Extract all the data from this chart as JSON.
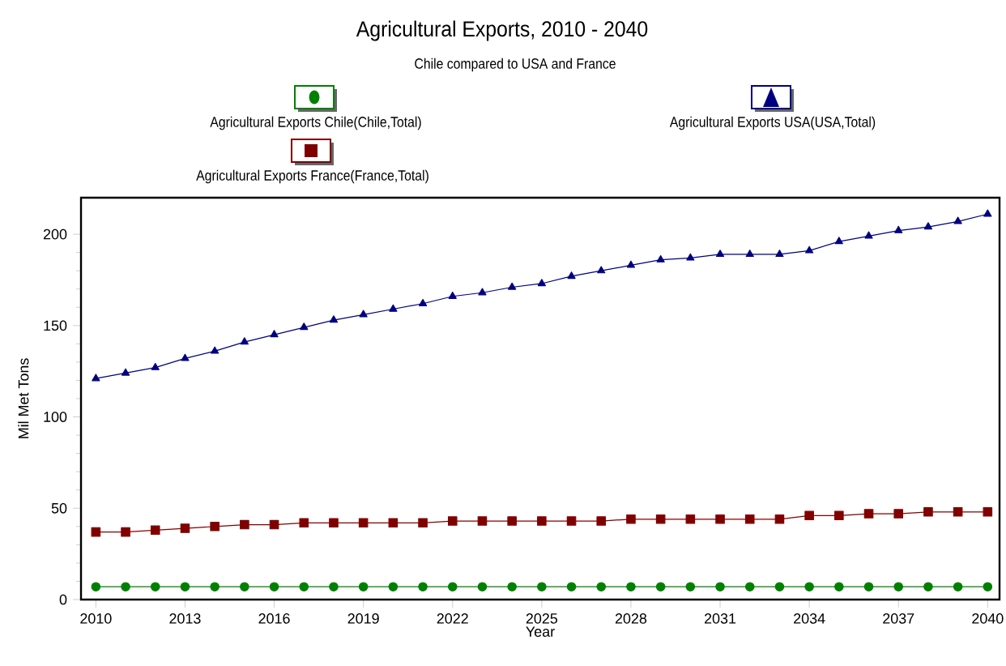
{
  "chart_data": {
    "type": "line",
    "title": "Agricultural Exports, 2010 - 2040",
    "subtitle": "Chile compared to USA and France",
    "xlabel": "Year",
    "ylabel": "Mil Met Tons",
    "x": [
      2010,
      2011,
      2012,
      2013,
      2014,
      2015,
      2016,
      2017,
      2018,
      2019,
      2020,
      2021,
      2022,
      2023,
      2024,
      2025,
      2026,
      2027,
      2028,
      2029,
      2030,
      2031,
      2032,
      2033,
      2034,
      2035,
      2036,
      2037,
      2038,
      2039,
      2040
    ],
    "xlim": [
      2009.5,
      2040.4
    ],
    "xticks": [
      2010,
      2013,
      2016,
      2019,
      2022,
      2025,
      2028,
      2031,
      2034,
      2037,
      2040
    ],
    "ylim": [
      0,
      220
    ],
    "yticks": [
      0,
      50,
      100,
      150,
      200
    ],
    "grid": false,
    "legend": "top",
    "line_style": "solid",
    "series": [
      {
        "name": "Agricultural Exports Chile(Chile,Total)",
        "color": "#008000",
        "marker": "circle",
        "values": [
          7,
          7,
          7,
          7,
          7,
          7,
          7,
          7,
          7,
          7,
          7,
          7,
          7,
          7,
          7,
          7,
          7,
          7,
          7,
          7,
          7,
          7,
          7,
          7,
          7,
          7,
          7,
          7,
          7,
          7,
          7
        ]
      },
      {
        "name": "Agricultural Exports USA(USA,Total)",
        "color": "#000080",
        "marker": "triangle",
        "values": [
          121,
          124,
          127,
          132,
          136,
          141,
          145,
          149,
          153,
          156,
          159,
          162,
          166,
          168,
          171,
          173,
          177,
          180,
          183,
          186,
          187,
          189,
          189,
          189,
          191,
          196,
          199,
          202,
          204,
          207,
          211
        ]
      },
      {
        "name": "Agricultural Exports France(France,Total)",
        "color": "#800000",
        "marker": "square",
        "values": [
          37,
          37,
          38,
          39,
          40,
          41,
          41,
          42,
          42,
          42,
          42,
          42,
          43,
          43,
          43,
          43,
          43,
          43,
          44,
          44,
          44,
          44,
          44,
          44,
          46,
          46,
          47,
          47,
          48,
          48,
          48
        ]
      }
    ]
  }
}
